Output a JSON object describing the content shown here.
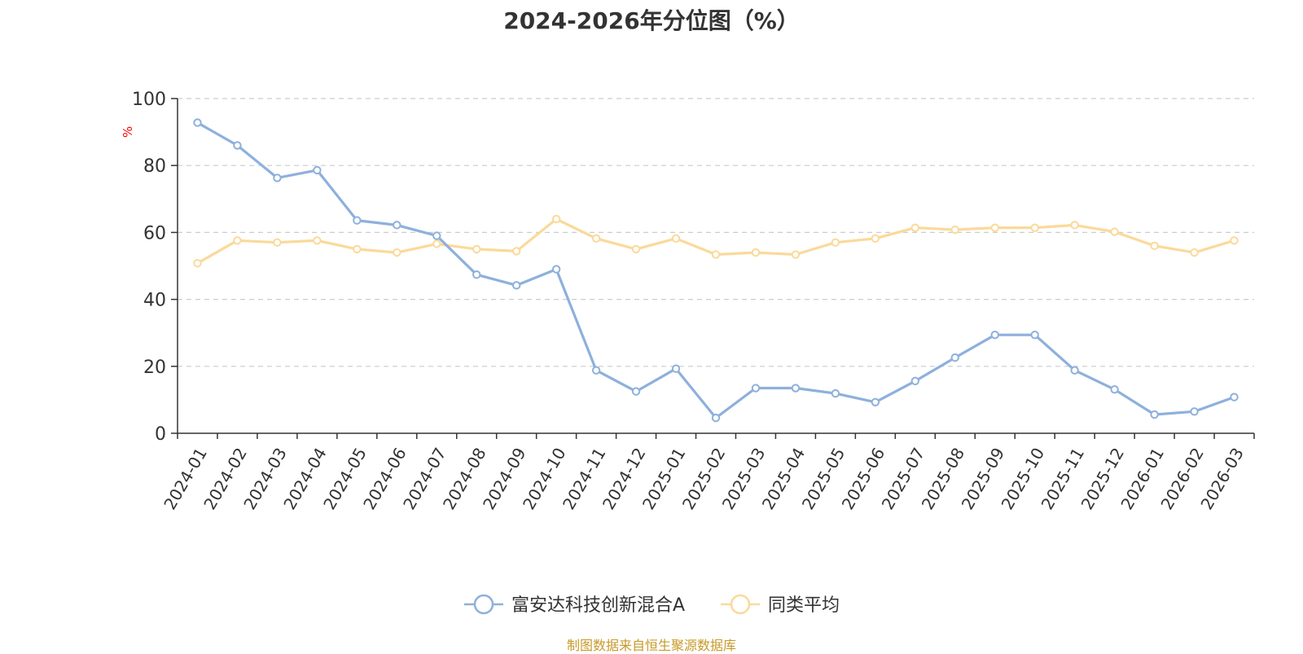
{
  "chart_data": {
    "type": "line",
    "title": "2024-2026年分位图（%）",
    "xlabel": "",
    "ylabel": "%",
    "ylabel_color": "#ff0000",
    "ylim": [
      0,
      100
    ],
    "yticks": [
      0,
      20,
      40,
      60,
      80,
      100
    ],
    "grid": true,
    "legend_position": "bottom",
    "categories": [
      "2024-01",
      "2024-02",
      "2024-03",
      "2024-04",
      "2024-05",
      "2024-06",
      "2024-07",
      "2024-08",
      "2024-09",
      "2024-10",
      "2024-11",
      "2024-12",
      "2025-01",
      "2025-02",
      "2025-03",
      "2025-04",
      "2025-05",
      "2025-06",
      "2025-07",
      "2025-08",
      "2025-09",
      "2025-10",
      "2025-11",
      "2025-12",
      "2026-01",
      "2026-02",
      "2026-03"
    ],
    "series": [
      {
        "name": "富安达科技创新混合A",
        "color": "#8eb0dc",
        "values": [
          92.8,
          86.0,
          76.3,
          78.6,
          63.6,
          62.2,
          59.0,
          47.4,
          44.2,
          49.0,
          18.8,
          12.5,
          19.3,
          4.6,
          13.5,
          13.5,
          11.9,
          9.3,
          15.6,
          22.6,
          29.4,
          29.4,
          18.8,
          13.1,
          5.6,
          6.5,
          10.8
        ]
      },
      {
        "name": "同类平均",
        "color": "#fbd99a",
        "values": [
          50.8,
          57.6,
          57.0,
          57.6,
          55.0,
          54.0,
          56.6,
          55.0,
          54.4,
          64.0,
          58.2,
          55.0,
          58.2,
          53.4,
          54.0,
          53.4,
          57.0,
          58.2,
          61.4,
          60.8,
          61.4,
          61.4,
          62.2,
          60.2,
          56.0,
          54.0,
          57.6
        ]
      }
    ]
  },
  "footer": {
    "source": "制图数据来自恒生聚源数据库"
  }
}
